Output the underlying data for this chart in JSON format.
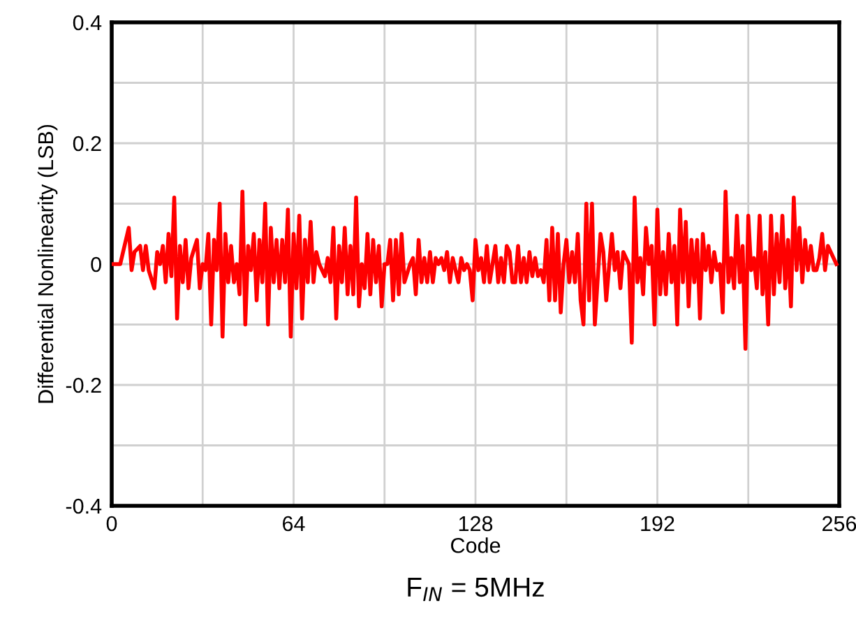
{
  "chart_data": {
    "type": "line",
    "xlabel": "Code",
    "ylabel": "Differential Nonlinearity (LSB)",
    "annotations": [
      "F$_{IN}$ = 5MHz"
    ],
    "xlim": [
      0,
      256
    ],
    "ylim": [
      -0.4,
      0.4
    ],
    "xticks": [
      0,
      {
        "value": 32,
        "label": null
      },
      64,
      {
        "value": 96,
        "label": null
      },
      128,
      {
        "value": 160,
        "label": null
      },
      192,
      {
        "value": 224,
        "label": null
      },
      256
    ],
    "yticks": [
      -0.4,
      {
        "value": -0.3,
        "label": null
      },
      -0.2,
      {
        "value": -0.1,
        "label": null
      },
      {
        "value": 0,
        "label": "0"
      },
      {
        "value": 0.1,
        "label": null
      },
      0.2,
      {
        "value": 0.3,
        "label": null
      },
      0.4
    ],
    "grid": true,
    "line_style": "solid",
    "series": [
      {
        "color": "#ff0000",
        "x": [
          0,
          1,
          2,
          3,
          4,
          6,
          7,
          8,
          10,
          11,
          12,
          13,
          15,
          16,
          17,
          18,
          19,
          20,
          21,
          22,
          23,
          24,
          25,
          26,
          27,
          28,
          30,
          31,
          32,
          33,
          34,
          35,
          36,
          37,
          38,
          39,
          40,
          41,
          42,
          43,
          44,
          45,
          46,
          47,
          48,
          49,
          50,
          51,
          52,
          53,
          54,
          55,
          56,
          57,
          58,
          59,
          60,
          61,
          62,
          63,
          64,
          65,
          66,
          67,
          68,
          69,
          70,
          71,
          72,
          73,
          75,
          76,
          77,
          78,
          79,
          80,
          81,
          82,
          83,
          84,
          85,
          86,
          87,
          88,
          89,
          90,
          91,
          92,
          93,
          94,
          95,
          96,
          97,
          98,
          99,
          100,
          101,
          102,
          103,
          105,
          106,
          107,
          108,
          109,
          110,
          111,
          112,
          113,
          114,
          115,
          116,
          117,
          118,
          119,
          120,
          121,
          122,
          123,
          124,
          125,
          126,
          127,
          128,
          129,
          130,
          131,
          132,
          133,
          134,
          135,
          136,
          137,
          138,
          139,
          140,
          141,
          142,
          143,
          144,
          145,
          146,
          147,
          148,
          149,
          150,
          151,
          152,
          153,
          154,
          155,
          156,
          157,
          158,
          159,
          160,
          161,
          162,
          163,
          164,
          165,
          166,
          167,
          168,
          169,
          170,
          172,
          173,
          174,
          176,
          177,
          178,
          179,
          180,
          181,
          182,
          183,
          184,
          185,
          186,
          187,
          188,
          189,
          190,
          191,
          192,
          193,
          194,
          195,
          196,
          197,
          198,
          199,
          200,
          201,
          202,
          203,
          204,
          205,
          206,
          207,
          208,
          209,
          210,
          211,
          212,
          213,
          214,
          215,
          216,
          217,
          218,
          219,
          220,
          221,
          222,
          223,
          224,
          225,
          226,
          227,
          228,
          229,
          230,
          231,
          232,
          233,
          234,
          235,
          236,
          237,
          238,
          239,
          240,
          241,
          242,
          243,
          244,
          245,
          246,
          247,
          248,
          249,
          250,
          251,
          252,
          254,
          255
        ],
        "values": [
          0,
          0,
          0,
          0,
          0.02,
          0.06,
          -0.01,
          0.02,
          0.03,
          -0.01,
          0.03,
          -0.01,
          -0.04,
          0.02,
          0,
          0.03,
          -0.03,
          0.05,
          -0.02,
          0.11,
          -0.09,
          0.03,
          -0.03,
          0.04,
          -0.04,
          0.01,
          0.04,
          -0.04,
          0,
          -0.01,
          0.05,
          -0.1,
          0.04,
          -0.01,
          0.1,
          -0.12,
          0.05,
          -0.03,
          0.03,
          -0.03,
          0,
          -0.05,
          0.12,
          -0.1,
          0.03,
          -0.01,
          0.05,
          -0.06,
          0.04,
          -0.03,
          0.1,
          -0.1,
          0.06,
          -0.03,
          0.04,
          -0.04,
          0.04,
          -0.03,
          0.09,
          -0.12,
          0.05,
          -0.04,
          0.08,
          -0.09,
          0.04,
          -0.03,
          0.07,
          -0.03,
          0.02,
          0,
          -0.02,
          0.01,
          -0.03,
          0.06,
          -0.09,
          0.03,
          -0.03,
          0.06,
          -0.05,
          0.03,
          -0.05,
          0.11,
          -0.07,
          0,
          -0.04,
          0.05,
          -0.05,
          0.04,
          -0.03,
          0.03,
          -0.07,
          0,
          0,
          0.04,
          -0.06,
          0.04,
          -0.05,
          0.05,
          -0.03,
          0,
          0.01,
          -0.05,
          0.04,
          -0.03,
          0.01,
          -0.03,
          0.02,
          -0.03,
          0.01,
          0,
          0.01,
          -0.01,
          0.02,
          -0.03,
          0.01,
          -0.01,
          -0.03,
          0.01,
          -0.01,
          0,
          -0.01,
          -0.06,
          0.04,
          -0.01,
          0.01,
          -0.03,
          0.03,
          -0.03,
          0,
          0.03,
          -0.03,
          0.01,
          -0.03,
          0.03,
          0.02,
          -0.03,
          -0.03,
          0.03,
          -0.03,
          0.01,
          -0.03,
          0.02,
          -0.02,
          0.01,
          -0.02,
          -0.01,
          -0.03,
          0.04,
          -0.06,
          0.06,
          -0.06,
          0.05,
          -0.08,
          0,
          0.04,
          -0.03,
          0.02,
          -0.03,
          0.05,
          -0.06,
          -0.1,
          0.1,
          -0.06,
          0.1,
          -0.1,
          0.05,
          0.02,
          -0.06,
          0.05,
          -0.01,
          0.02,
          -0.04,
          0.02,
          0.01,
          0,
          -0.13,
          0.11,
          -0.03,
          0.01,
          -0.05,
          0.06,
          0,
          0.03,
          -0.1,
          0.09,
          -0.05,
          0.02,
          -0.05,
          0.05,
          -0.03,
          0.03,
          -0.1,
          0.09,
          -0.03,
          0.07,
          -0.07,
          0.04,
          -0.03,
          0.04,
          -0.09,
          0.05,
          -0.01,
          0.03,
          -0.03,
          0.02,
          -0.01,
          0,
          -0.08,
          0.12,
          -0.03,
          0.01,
          -0.04,
          0.08,
          -0.03,
          0.03,
          -0.14,
          0.08,
          -0.01,
          0.01,
          -0.04,
          0.08,
          -0.05,
          0.02,
          -0.1,
          0.08,
          -0.05,
          0.05,
          -0.03,
          0.08,
          -0.04,
          0.04,
          -0.07,
          0.11,
          -0.01,
          0.06,
          -0.03,
          0.04,
          -0.01,
          0.03,
          -0.01,
          -0.01,
          0.01,
          0.05,
          -0.01,
          0.03,
          0.01,
          0
        ]
      }
    ]
  }
}
